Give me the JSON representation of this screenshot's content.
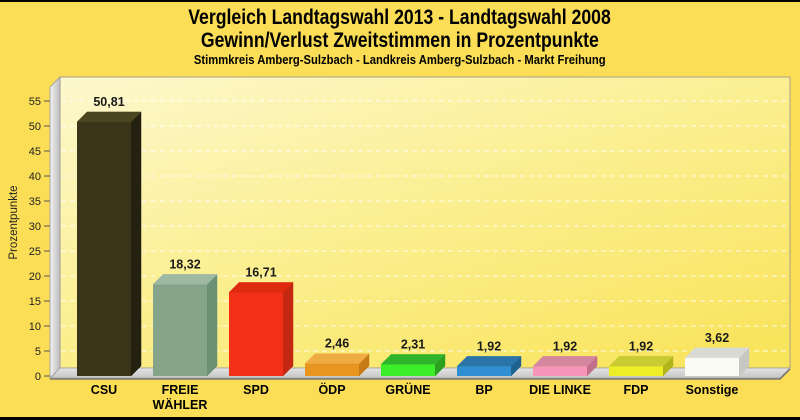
{
  "header": {
    "title_line1": "Vergleich Landtagswahl 2013 - Landtagswahl 2008",
    "title_line2": "Gewinn/Verlust Zweitstimmen in Prozentpunkte",
    "subtitle": "Stimmkreis Amberg-Sulzbach - Landkreis Amberg-Sulzbach - Markt Freihung"
  },
  "chart_data": {
    "type": "bar",
    "style": "3d-bars",
    "title": "Vergleich Landtagswahl 2013 - Landtagswahl 2008",
    "subtitle2": "Gewinn/Verlust Zweitstimmen in Prozentpunkte",
    "subtitle3": "Stimmkreis Amberg-Sulzbach - Landkreis Amberg-Sulzbach - Markt Freihung",
    "xlabel": "",
    "ylabel": "Prozentpunkte",
    "ylim": [
      0,
      55
    ],
    "ytick_step": 5,
    "yticks": [
      0,
      5,
      10,
      15,
      20,
      25,
      30,
      35,
      40,
      45,
      50,
      55
    ],
    "grid": "horizontal-dashed",
    "legend": "none",
    "categories": [
      "CSU",
      "FREIE WÄHLER",
      "SPD",
      "ÖDP",
      "GRÜNE",
      "BP",
      "DIE LINKE",
      "FDP",
      "Sonstige"
    ],
    "values": [
      50.81,
      18.32,
      16.71,
      2.46,
      2.31,
      1.92,
      1.92,
      1.92,
      3.62
    ],
    "value_labels": [
      "50,81",
      "18,32",
      "16,71",
      "2,46",
      "2,31",
      "1,92",
      "1,92",
      "1,92",
      "3,62"
    ],
    "bars": [
      {
        "slug": "csu",
        "label_lines": [
          "CSU"
        ],
        "value": 50.81,
        "value_label": "50,81",
        "front": "#3A3418",
        "top": "#4B4520",
        "side": "#252110"
      },
      {
        "slug": "freie-waehler",
        "label_lines": [
          "FREIE",
          "WÄHLER"
        ],
        "value": 18.32,
        "value_label": "18,32",
        "front": "#85A489",
        "top": "#9FB8A2",
        "side": "#6B9074"
      },
      {
        "slug": "spd",
        "label_lines": [
          "SPD"
        ],
        "value": 16.71,
        "value_label": "16,71",
        "front": "#F23018",
        "top": "#DE2B10",
        "side": "#C42810"
      },
      {
        "slug": "oedp",
        "label_lines": [
          "ÖDP"
        ],
        "value": 2.46,
        "value_label": "2,46",
        "front": "#E8951F",
        "top": "#EFAC42",
        "side": "#C57B16"
      },
      {
        "slug": "gruene",
        "label_lines": [
          "GRÜNE"
        ],
        "value": 2.31,
        "value_label": "2,31",
        "front": "#3CEE28",
        "top": "#2FB42B",
        "side": "#2BA01E"
      },
      {
        "slug": "bp",
        "label_lines": [
          "BP"
        ],
        "value": 1.92,
        "value_label": "1,92",
        "front": "#2F8FD2",
        "top": "#2B74A8",
        "side": "#20628F"
      },
      {
        "slug": "die-linke",
        "label_lines": [
          "DIE LINKE"
        ],
        "value": 1.92,
        "value_label": "1,92",
        "front": "#F795B8",
        "top": "#D5869F",
        "side": "#C06F8C"
      },
      {
        "slug": "fdp",
        "label_lines": [
          "FDP"
        ],
        "value": 1.92,
        "value_label": "1,92",
        "front": "#EDED28",
        "top": "#C8CC32",
        "side": "#B0B418"
      },
      {
        "slug": "sonstige",
        "label_lines": [
          "Sonstige"
        ],
        "value": 3.62,
        "value_label": "3,62",
        "front": "#FBFBF6",
        "top": "#DADAD4",
        "side": "#C8C8C2"
      }
    ]
  },
  "colors": {
    "page_background": "#FBDE55",
    "frame_border": "#000000",
    "plot_bg_top_left": "#FDF8CE",
    "plot_bg_mid": "#FBEE8C",
    "plot_bg_bottom_right": "#F9E45E",
    "plot_border": "#A9A28C",
    "gridline": "#FFFFFF",
    "wall_light": "#F2F2F2",
    "wall_dark": "#BDBDBD",
    "floor_light": "#E3E3E3",
    "floor_dark": "#C6C6C6",
    "axis_text": "#222222",
    "value_text": "#1A1A1A",
    "category_text": "#000000",
    "baseline": "#777777"
  }
}
